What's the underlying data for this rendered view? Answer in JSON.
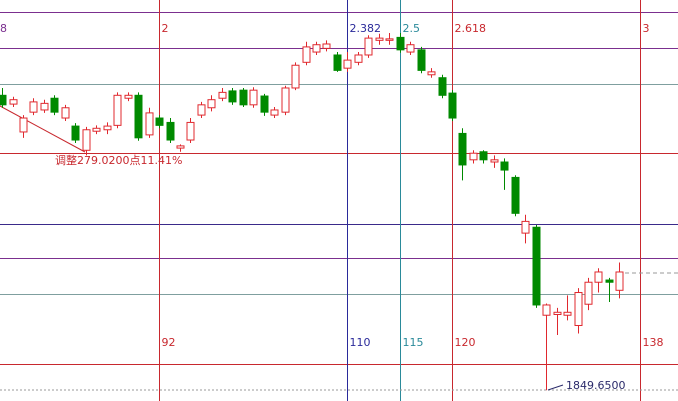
{
  "chart_data": {
    "type": "candlestick",
    "x": [
      77,
      78,
      79,
      80,
      81,
      82,
      83,
      84,
      85,
      86,
      87,
      88,
      89,
      90,
      91,
      92,
      93,
      94,
      95,
      96,
      97,
      98,
      99,
      100,
      101,
      102,
      103,
      104,
      105,
      106,
      107,
      108,
      109,
      110,
      111,
      112,
      113,
      114,
      115,
      116,
      117,
      118,
      119,
      120,
      121,
      122,
      123,
      124,
      125,
      126,
      127,
      128,
      129,
      130,
      131,
      132,
      133,
      134,
      135,
      136
    ],
    "open": [
      2252,
      2240,
      2202,
      2229,
      2232,
      2248,
      2221,
      2210,
      2177,
      2203,
      2205,
      2211,
      2248,
      2252,
      2198,
      2221,
      2215,
      2180,
      2191,
      2225,
      2235,
      2248,
      2258,
      2259,
      2239,
      2251,
      2225,
      2229,
      2262,
      2297,
      2311,
      2316,
      2307,
      2289,
      2297,
      2307,
      2327,
      2327,
      2331,
      2311,
      2314,
      2280,
      2276,
      2255,
      2200,
      2164,
      2175,
      2161,
      2161,
      2140,
      2064,
      2072,
      1952,
      1953,
      1952,
      1938,
      1967,
      1997,
      2000,
      1986
    ],
    "high": [
      2262,
      2250,
      2225,
      2248,
      2246,
      2252,
      2239,
      2214,
      2209,
      2211,
      2215,
      2256,
      2256,
      2256,
      2235,
      2225,
      2221,
      2185,
      2221,
      2243,
      2252,
      2262,
      2262,
      2262,
      2263,
      2254,
      2236,
      2265,
      2297,
      2325,
      2325,
      2327,
      2311,
      2311,
      2311,
      2334,
      2336,
      2337,
      2337,
      2325,
      2318,
      2289,
      2280,
      2259,
      2207,
      2177,
      2177,
      2170,
      2166,
      2143,
      2089,
      2075,
      1968,
      1962,
      1979,
      1989,
      2003,
      2016,
      2003,
      2024
    ],
    "low": [
      2235,
      2236,
      2194,
      2225,
      2228,
      2225,
      2217,
      2187,
      2170,
      2199,
      2199,
      2207,
      2244,
      2190,
      2194,
      2207,
      2187,
      2175,
      2187,
      2221,
      2230,
      2244,
      2239,
      2236,
      2235,
      2224,
      2221,
      2225,
      2259,
      2293,
      2307,
      2312,
      2284,
      2284,
      2293,
      2303,
      2321,
      2321,
      2310,
      2307,
      2282,
      2276,
      2248,
      2217,
      2136,
      2159,
      2159,
      2153,
      2123,
      2087,
      2050,
      1962,
      1849.65,
      1925,
      1945,
      1927,
      1959,
      1983,
      1970,
      1975
    ],
    "close": [
      2239,
      2246,
      2221,
      2243,
      2241,
      2229,
      2235,
      2191,
      2205,
      2207,
      2210,
      2252,
      2252,
      2194,
      2228,
      2211,
      2191,
      2183,
      2215,
      2239,
      2246,
      2256,
      2243,
      2239,
      2259,
      2229,
      2232,
      2262,
      2293,
      2318,
      2321,
      2322,
      2286,
      2300,
      2307,
      2330,
      2330,
      2329,
      2314,
      2321,
      2286,
      2284,
      2252,
      2221,
      2157,
      2173,
      2164,
      2164,
      2150,
      2091,
      2080,
      1966,
      1966,
      1956,
      1956,
      1983,
      1997,
      2011,
      1997,
      2011
    ],
    "xlim": [
      76.8,
      141.6
    ],
    "ylim": [
      1835,
      2382
    ],
    "up_color": "#e0282e",
    "down_color": "#008a00",
    "levels": [
      {
        "value": 2366,
        "color": "#7b2f8f"
      },
      {
        "value": 2316,
        "color": "#7b2f8f"
      },
      {
        "value": 2267,
        "color": "#7f9f9f"
      },
      {
        "value": 2173,
        "color": "#c8282e"
      },
      {
        "value": 2076,
        "color": "#3a2a8a"
      },
      {
        "value": 2030,
        "color": "#7b2f8f"
      },
      {
        "value": 1981,
        "color": "#7f9f9f"
      },
      {
        "value": 1885,
        "color": "#c8282e"
      }
    ],
    "time_lines": [
      {
        "ratio": 2,
        "bar": 92,
        "color": "#c8282e"
      },
      {
        "ratio": 2.382,
        "bar": 110,
        "color": "#2a2a9a"
      },
      {
        "ratio": 2.5,
        "bar": 115,
        "color": "#2a8a9a"
      },
      {
        "ratio": 2.618,
        "bar": 120,
        "color": "#c8282e"
      },
      {
        "ratio": 3,
        "bar": 138,
        "color": "#c8282e"
      }
    ],
    "edge_label": "8",
    "annotation": "调整279.0200点11.41%",
    "low_label": "1849.6500"
  }
}
